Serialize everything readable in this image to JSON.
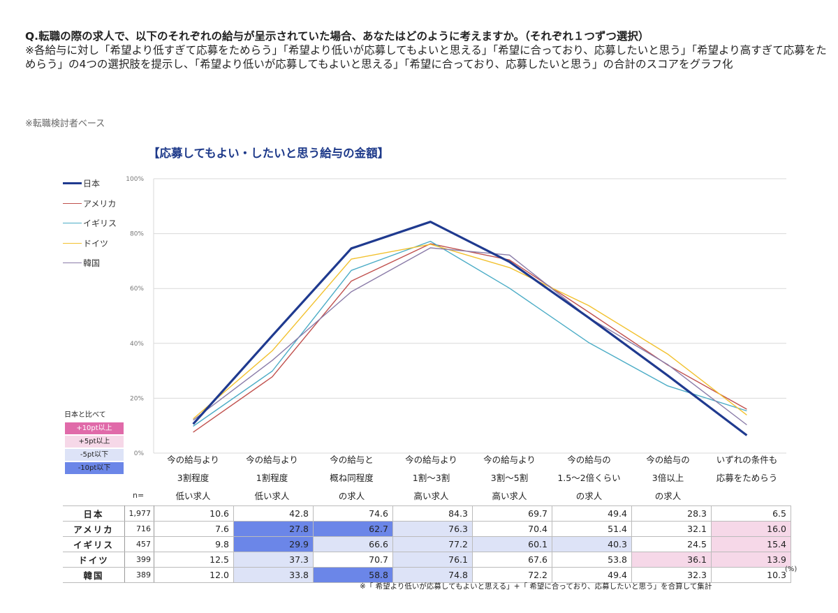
{
  "question": {
    "title": "Q.転職の際の求人で、以下のそれぞれの給与が呈示されていた場合、あなたはどのように考えますか。（それぞれ１つずつ選択）",
    "note": "※各給与に対し「希望より低すぎて応募をためらう」「希望より低いが応募してもよいと思える」「希望に合っており、応募したいと思う」「希望より高すぎて応募をためらう」の4つの選択肢を提示し、「希望より低いが応募してもよいと思える」「希望に合っており、応募したいと思う」の合計のスコアをグラフ化",
    "base": "※転職検討者ベース"
  },
  "legend": [
    {
      "label": "日本",
      "color": "#1f3a8f"
    },
    {
      "label": "アメリカ",
      "color": "#c0504d"
    },
    {
      "label": "イギリス",
      "color": "#4bacc6"
    },
    {
      "label": "ドイツ",
      "color": "#f2c12e"
    },
    {
      "label": "韓国",
      "color": "#8a7ba8"
    }
  ],
  "comparison_legend": {
    "title": "日本と比べて",
    "items": [
      {
        "label": "+10pt以上",
        "color": "#e06aa9"
      },
      {
        "label": "+5pt以上",
        "color": "#f6d8e8"
      },
      {
        "label": "-5pt以下",
        "color": "#dde3f7"
      },
      {
        "label": "-10pt以下",
        "color": "#6b86e8"
      }
    ]
  },
  "table": {
    "n_label": "n=",
    "column_headers": [
      [
        "今の給与より",
        "3割程度",
        "低い求人"
      ],
      [
        "今の給与より",
        "1割程度",
        "低い求人"
      ],
      [
        "今の給与と",
        "概ね同程度",
        "の求人"
      ],
      [
        "今の給与より",
        "1割～3割",
        "高い求人"
      ],
      [
        "今の給与より",
        "3割～5割",
        "高い求人"
      ],
      [
        "今の給与の",
        "1.5～2倍くらい",
        "の求人"
      ],
      [
        "今の給与の",
        "3倍以上",
        "の求人"
      ],
      [
        "いずれの条件も",
        "応募をためらう",
        ""
      ]
    ],
    "rows": [
      {
        "country": "日本",
        "n": "1,977",
        "values": [
          "10.6",
          "42.8",
          "74.6",
          "84.3",
          "69.7",
          "49.4",
          "28.3",
          "6.5"
        ],
        "shade": [
          "",
          "",
          "",
          "",
          "",
          "",
          "",
          ""
        ]
      },
      {
        "country": "アメリカ",
        "n": "716",
        "values": [
          "7.6",
          "27.8",
          "62.7",
          "76.3",
          "70.4",
          "51.4",
          "32.1",
          "16.0"
        ],
        "shade": [
          "",
          "#6b86e8",
          "#6b86e8",
          "#dde3f7",
          "",
          "",
          "",
          "#f6d8e8"
        ]
      },
      {
        "country": "イギリス",
        "n": "457",
        "values": [
          "9.8",
          "29.9",
          "66.6",
          "77.2",
          "60.1",
          "40.3",
          "24.5",
          "15.4"
        ],
        "shade": [
          "",
          "#6b86e8",
          "#dde3f7",
          "#dde3f7",
          "#dde3f7",
          "#dde3f7",
          "",
          "#f6d8e8"
        ]
      },
      {
        "country": "ドイツ",
        "n": "399",
        "values": [
          "12.5",
          "37.3",
          "70.7",
          "76.1",
          "67.6",
          "53.8",
          "36.1",
          "13.9"
        ],
        "shade": [
          "",
          "#dde3f7",
          "",
          "#dde3f7",
          "",
          "",
          "#f6d8e8",
          "#f6d8e8"
        ]
      },
      {
        "country": "韓国",
        "n": "389",
        "values": [
          "12.0",
          "33.8",
          "58.8",
          "74.8",
          "72.2",
          "49.4",
          "32.3",
          "10.3"
        ],
        "shade": [
          "",
          "#dde3f7",
          "#6b86e8",
          "#dde3f7",
          "",
          "",
          "",
          ""
        ]
      }
    ],
    "pct_note": "(%)",
    "footnote": "※「 希望より低いが応募してもよいと思える」+「 希望に合っており、応募したいと思う」を合算して集計"
  },
  "chart_data": {
    "type": "line",
    "title": "【応募してもよい・したいと思う給与の金額】",
    "categories": [
      "今の給与より3割程度低い求人",
      "今の給与より1割程度低い求人",
      "今の給与と概ね同程度の求人",
      "今の給与より1割～3割高い求人",
      "今の給与より3割～5割高い求人",
      "今の給与の1.5～2倍くらいの求人",
      "今の給与の3倍以上の求人",
      "いずれの条件も応募をためらう"
    ],
    "series": [
      {
        "name": "日本",
        "color": "#1f3a8f",
        "values": [
          10.6,
          42.8,
          74.6,
          84.3,
          69.7,
          49.4,
          28.3,
          6.5
        ]
      },
      {
        "name": "アメリカ",
        "color": "#c0504d",
        "values": [
          7.6,
          27.8,
          62.7,
          76.3,
          70.4,
          51.4,
          32.1,
          16.0
        ]
      },
      {
        "name": "イギリス",
        "color": "#4bacc6",
        "values": [
          9.8,
          29.9,
          66.6,
          77.2,
          60.1,
          40.3,
          24.5,
          15.4
        ]
      },
      {
        "name": "ドイツ",
        "color": "#f2c12e",
        "values": [
          12.5,
          37.3,
          70.7,
          76.1,
          67.6,
          53.8,
          36.1,
          13.9
        ]
      },
      {
        "name": "韓国",
        "color": "#8a7ba8",
        "values": [
          12.0,
          33.8,
          58.8,
          74.8,
          72.2,
          49.4,
          32.3,
          10.3
        ]
      }
    ],
    "yticks": [
      "0%",
      "20%",
      "40%",
      "60%",
      "80%",
      "100%"
    ],
    "ylim": [
      0,
      100
    ],
    "grid": true,
    "legend_position": "left"
  }
}
